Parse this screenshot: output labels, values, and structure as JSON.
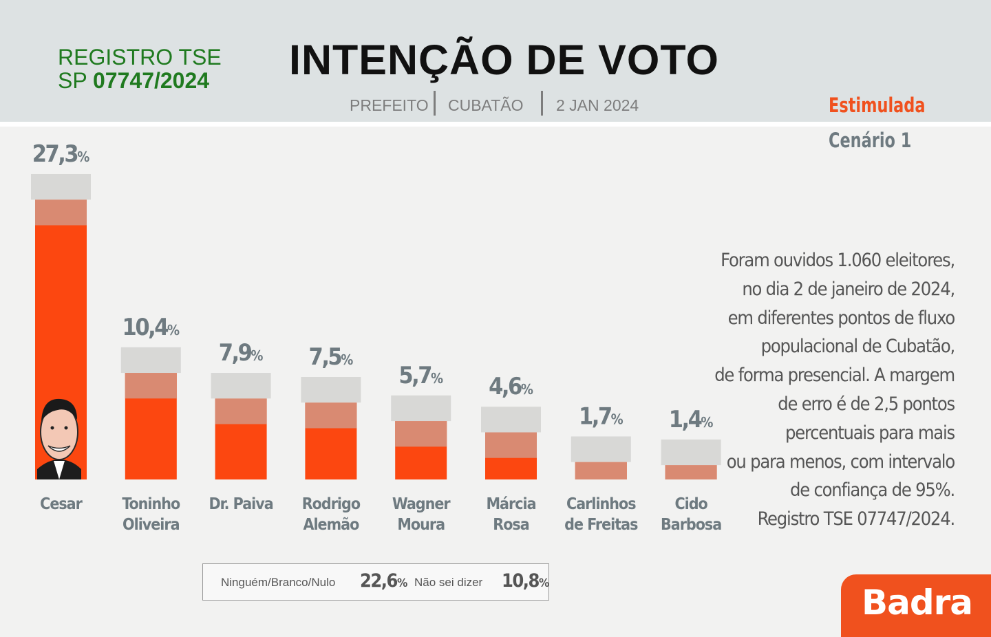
{
  "header": {
    "registro_line1": "REGISTRO TSE",
    "registro_prefix": "SP ",
    "registro_number": "07747/2024",
    "title": "INTENÇÃO DE VOTO",
    "cargo": "PREFEITO",
    "cidade": "CUBATÃO",
    "data": "2 JAN 2024",
    "tipo": "Estimulada",
    "cenario": "Cenário 1"
  },
  "chart_data": {
    "type": "bar",
    "categories": [
      [
        "Cesar"
      ],
      [
        "Toninho",
        "Oliveira"
      ],
      [
        "Dr. Paiva"
      ],
      [
        "Rodrigo",
        "Alemão"
      ],
      [
        "Wagner",
        "Moura"
      ],
      [
        "Márcia",
        "Rosa"
      ],
      [
        "Carlinhos",
        "de Freitas"
      ],
      [
        "Cido",
        "Barbosa"
      ]
    ],
    "values": [
      27.3,
      10.4,
      7.9,
      7.5,
      5.7,
      4.6,
      1.7,
      1.4
    ],
    "value_labels": [
      "27,3",
      "10,4",
      "7,9",
      "7,5",
      "5,7",
      "4,6",
      "1,7",
      "1,4"
    ],
    "unit": "%",
    "margin_of_error": 2.5,
    "bar_color": "#fc4710",
    "margin_color": "#d8d8d6",
    "margin_overlap_color": "#d98a72"
  },
  "methodology_lines": [
    "Foram ouvidos 1.060 eleitores,",
    "no dia 2 de janeiro de 2024,",
    "em diferentes pontos de fluxo",
    "populacional de Cubatão,",
    "de forma presencial. A margem",
    "de erro é de 2,5 pontos",
    "percentuais para mais",
    "ou para menos,  com intervalo",
    "de confiança de 95%.",
    "Registro TSE 07747/2024."
  ],
  "others": {
    "nulo_label": "Ninguém/Branco/Nulo",
    "nulo_value": "22,6",
    "nsd_label": "Não sei dizer",
    "nsd_value": "10,8",
    "unit": "%"
  },
  "logo": {
    "text": "Badra",
    "color": "#f0511e"
  }
}
